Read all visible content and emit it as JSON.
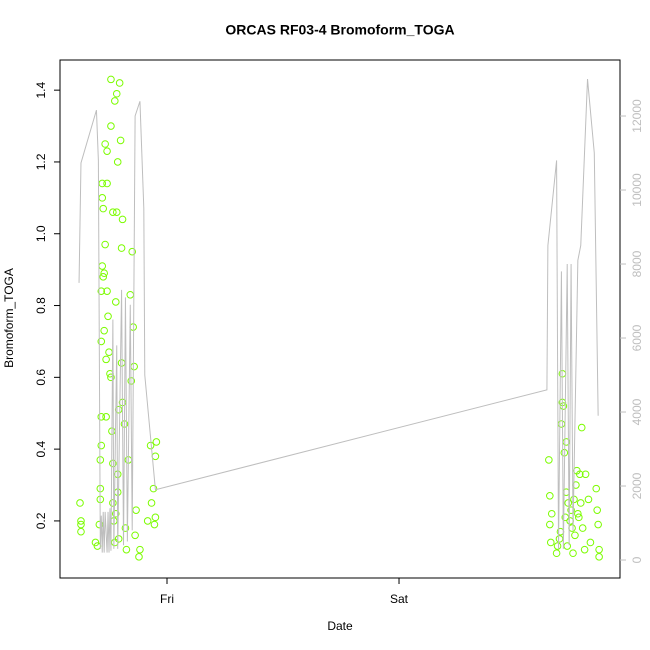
{
  "chart_data": {
    "type": "scatter",
    "title": "ORCAS RF03-4 Bromoform_TOGA",
    "x_label": "Date",
    "y_label": "Bromoform_TOGA",
    "xlim": [
      -11.07,
      46.86
    ],
    "xticks": [
      {
        "value": 0,
        "label": "Fri"
      },
      {
        "value": 24,
        "label": "Sat"
      }
    ],
    "ylim": [
      0.041,
      1.484
    ],
    "yticks": [
      0.2,
      0.4,
      0.6,
      0.8,
      {
        "value": 1.0,
        "label": "1.0"
      },
      1.2,
      1.4
    ],
    "y2lim": [
      -486,
      13514
    ],
    "y2ticks": [
      0,
      2000,
      4000,
      6000,
      8000,
      10000,
      12000
    ],
    "series": [
      {
        "color": "#7cfc00",
        "x": [
          -9.0,
          -8.9,
          -8.9,
          -8.9,
          -7.4,
          -7.2,
          -7.0,
          -6.9,
          -6.9,
          -6.9,
          -6.8,
          -6.8,
          -6.8,
          -6.8,
          -6.7,
          -6.7,
          -6.7,
          -6.6,
          -6.6,
          -6.5,
          -6.5,
          -6.4,
          -6.4,
          -6.3,
          -6.3,
          -6.2,
          -6.2,
          -6.2,
          -6.1,
          -6.0,
          -5.9,
          -5.8,
          -5.8,
          -5.8,
          -5.7,
          -5.6,
          -5.6,
          -5.5,
          -5.4,
          -5.3,
          -5.2,
          -5.1,
          -5.1,
          -5.0,
          -4.9,
          -4.8,
          -4.7,
          -4.7,
          -4.6,
          -4.4,
          -4.3,
          -4.2,
          -4.0,
          -3.8,
          -3.7,
          -3.6,
          -3.5,
          -3.4,
          -3.3,
          -3.2,
          -2.9,
          -2.8,
          -2.0,
          -1.7,
          -1.6,
          -1.4,
          -1.3,
          -1.2,
          -1.2,
          -1.1,
          -5.2,
          -5.1,
          -4.6,
          -5.6,
          -5.3,
          -5.0,
          -5.4,
          39.5,
          39.6,
          39.6,
          39.7,
          39.8,
          40.3,
          40.4,
          40.7,
          40.8,
          40.9,
          40.9,
          41.0,
          41.1,
          41.3,
          41.3,
          41.4,
          41.5,
          41.7,
          41.8,
          41.9,
          42.0,
          42.1,
          42.2,
          42.3,
          42.4,
          42.5,
          42.6,
          42.7,
          42.8,
          42.9,
          43.0,
          43.2,
          43.3,
          43.6,
          43.8,
          44.4,
          44.5,
          44.6,
          44.7,
          44.7,
          40.6,
          41.2
        ],
        "values": [
          0.25,
          0.2,
          0.19,
          0.17,
          0.14,
          0.13,
          0.19,
          0.26,
          0.29,
          0.37,
          0.41,
          0.49,
          0.7,
          0.84,
          0.91,
          1.1,
          1.14,
          1.07,
          0.88,
          0.89,
          0.73,
          1.25,
          0.97,
          0.65,
          0.49,
          1.23,
          1.14,
          0.84,
          0.77,
          0.67,
          0.61,
          0.6,
          1.43,
          1.3,
          0.45,
          0.36,
          0.25,
          0.2,
          1.37,
          0.81,
          1.06,
          0.33,
          0.28,
          0.51,
          1.42,
          1.26,
          0.96,
          0.64,
          0.53,
          0.47,
          0.18,
          0.12,
          0.37,
          0.83,
          0.59,
          0.95,
          0.74,
          0.63,
          0.16,
          0.23,
          0.1,
          0.12,
          0.2,
          0.41,
          0.25,
          0.29,
          0.19,
          0.21,
          0.38,
          0.42,
          1.39,
          1.2,
          1.04,
          1.06,
          0.22,
          0.15,
          0.14,
          0.37,
          0.27,
          0.19,
          0.14,
          0.22,
          0.11,
          0.13,
          0.17,
          0.47,
          0.61,
          0.53,
          0.52,
          0.39,
          0.42,
          0.28,
          0.13,
          0.25,
          0.2,
          0.23,
          0.18,
          0.11,
          0.26,
          0.16,
          0.3,
          0.34,
          0.22,
          0.21,
          0.33,
          0.25,
          0.46,
          0.18,
          0.12,
          0.33,
          0.26,
          0.14,
          0.29,
          0.23,
          0.19,
          0.12,
          0.1,
          0.15,
          0.21
        ]
      },
      {
        "color": "#bebebe",
        "type": "line",
        "axis": "y2",
        "x": [
          -9.1,
          -8.9,
          -7.3,
          -7.1,
          -6.9,
          -6.8,
          -6.7,
          -6.6,
          -6.5,
          -6.4,
          -6.2,
          -6.1,
          -6.0,
          -5.9,
          -5.8,
          -5.6,
          -5.5,
          -5.2,
          -5.1,
          -4.7,
          -4.5,
          -4.3,
          -4.1,
          -3.8,
          -3.6,
          -3.3,
          -2.8,
          -2.4,
          -2.3,
          -1.2,
          39.3,
          39.4,
          40.3,
          40.5,
          40.8,
          41.0,
          41.4,
          41.6,
          41.8,
          42.0,
          42.5,
          42.8,
          43.5,
          44.2,
          44.6
        ],
        "values": [
          7490,
          10730,
          12160,
          10800,
          300,
          1200,
          200,
          1300,
          200,
          1300,
          200,
          1300,
          200,
          1400,
          250,
          6500,
          300,
          5800,
          300,
          7300,
          400,
          7100,
          500,
          6900,
          800,
          12000,
          12400,
          9500,
          5000,
          1900,
          4600,
          8500,
          10800,
          300,
          7800,
          300,
          8000,
          400,
          8000,
          800,
          8100,
          8500,
          13000,
          11000,
          3900
        ]
      }
    ]
  }
}
